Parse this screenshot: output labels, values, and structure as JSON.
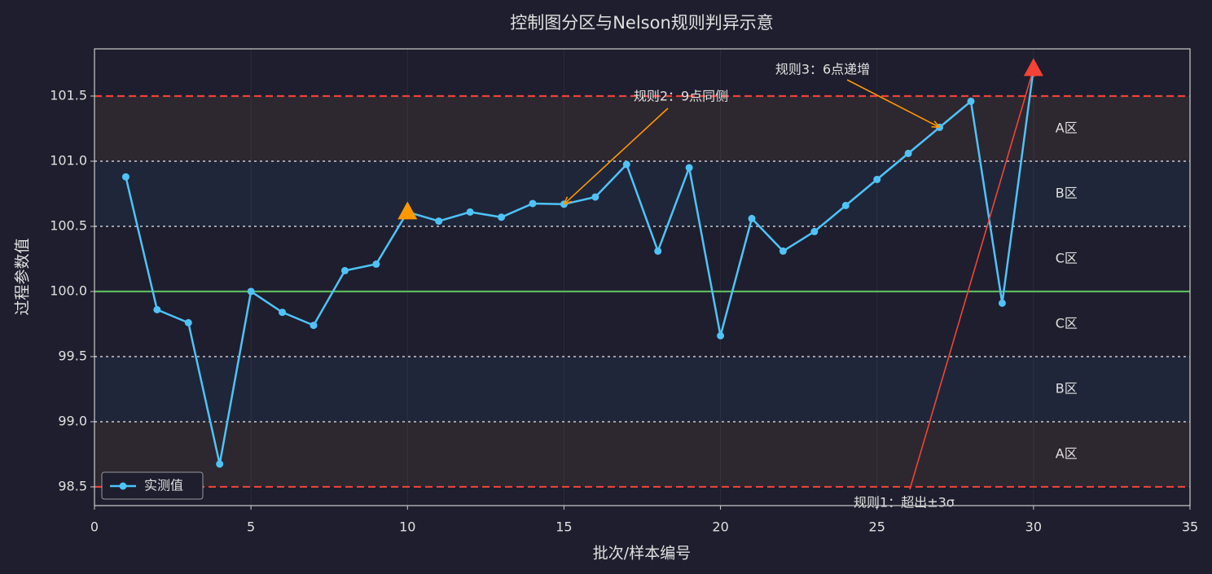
{
  "chart_data": {
    "type": "line",
    "title": "控制图分区与Nelson规则判异示意",
    "x_label": "批次/样本编号",
    "y_label": "过程参数值",
    "xlim": [
      0,
      35
    ],
    "ylim": [
      98.356,
      101.8625
    ],
    "xticks": [
      0,
      5,
      10,
      15,
      20,
      25,
      30,
      35
    ],
    "yticks": [
      98.5,
      {
        "value": 99,
        "label": "99.0"
      },
      99.5,
      {
        "value": 100,
        "label": "100.0"
      },
      100.5,
      {
        "value": 101,
        "label": "101.0"
      },
      101.5
    ],
    "grid": true,
    "legend": "lower left",
    "series": [
      {
        "name": "实测值",
        "color": "#4fc3f7",
        "x": [
          1,
          2,
          3,
          4,
          5,
          6,
          7,
          8,
          9,
          10,
          11,
          12,
          13,
          14,
          15,
          16,
          17,
          18,
          19,
          20,
          21,
          22,
          23,
          24,
          25,
          26,
          27,
          28,
          29,
          30
        ],
        "values": [
          100.88,
          99.86,
          99.76,
          98.675,
          100.0,
          99.84,
          99.74,
          100.16,
          100.21,
          100.61,
          100.54,
          100.61,
          100.57,
          100.675,
          100.67,
          100.725,
          100.975,
          100.31,
          100.95,
          99.66,
          100.56,
          100.31,
          100.46,
          100.66,
          100.86,
          101.06,
          101.26,
          101.46,
          99.91,
          101.71
        ]
      }
    ],
    "zones": [
      {
        "label": "A区",
        "from": 101,
        "to": 101.5,
        "fill": "#2d2730",
        "color": "#ff9f1c"
      },
      {
        "label": "B区",
        "from": 100.5,
        "to": 101,
        "fill": "#1f2639",
        "color": "#4fc3f7"
      },
      {
        "label": "C区",
        "from": 100,
        "to": 100.5,
        "color": "#9a9aa6"
      },
      {
        "label": "C区",
        "from": 99.5,
        "to": 100,
        "color": "#9a9aa6"
      },
      {
        "label": "B区",
        "from": 99,
        "to": 99.5,
        "fill": "#1f2639",
        "color": "#4fc3f7"
      },
      {
        "label": "A区",
        "from": 98.5,
        "to": 99,
        "fill": "#2d2730",
        "color": "#ff9f1c"
      }
    ],
    "hlines": [
      {
        "value": 101.5,
        "style": "dashed",
        "color": "#e8423a"
      },
      {
        "value": 101,
        "style": "dotted",
        "color": "#a0a0aa"
      },
      {
        "value": 100.5,
        "style": "dotted",
        "color": "#a0a0aa"
      },
      {
        "value": 100,
        "style": "solid",
        "color": "#5cb85c"
      },
      {
        "value": 99.5,
        "style": "dotted",
        "color": "#a0a0aa"
      },
      {
        "value": 99,
        "style": "dotted",
        "color": "#a0a0aa"
      },
      {
        "value": 98.5,
        "style": "dashed",
        "color": "#e8423a"
      }
    ],
    "markers": [
      {
        "x": 10,
        "y": 100.61,
        "color": "#ff9800"
      },
      {
        "x": 30,
        "y": 101.71,
        "color": "#f44336"
      }
    ],
    "annotations": [
      {
        "text": "规则2：9点同侧",
        "x": 15,
        "y": 100.67,
        "color": "#ff9800"
      },
      {
        "text": "规则3：6点递增",
        "x": 27,
        "y": 101.26,
        "color": "#ff9800"
      },
      {
        "text": "规则1：超出±3σ",
        "x": 30,
        "y": 101.71,
        "color": "#f44336"
      }
    ]
  }
}
